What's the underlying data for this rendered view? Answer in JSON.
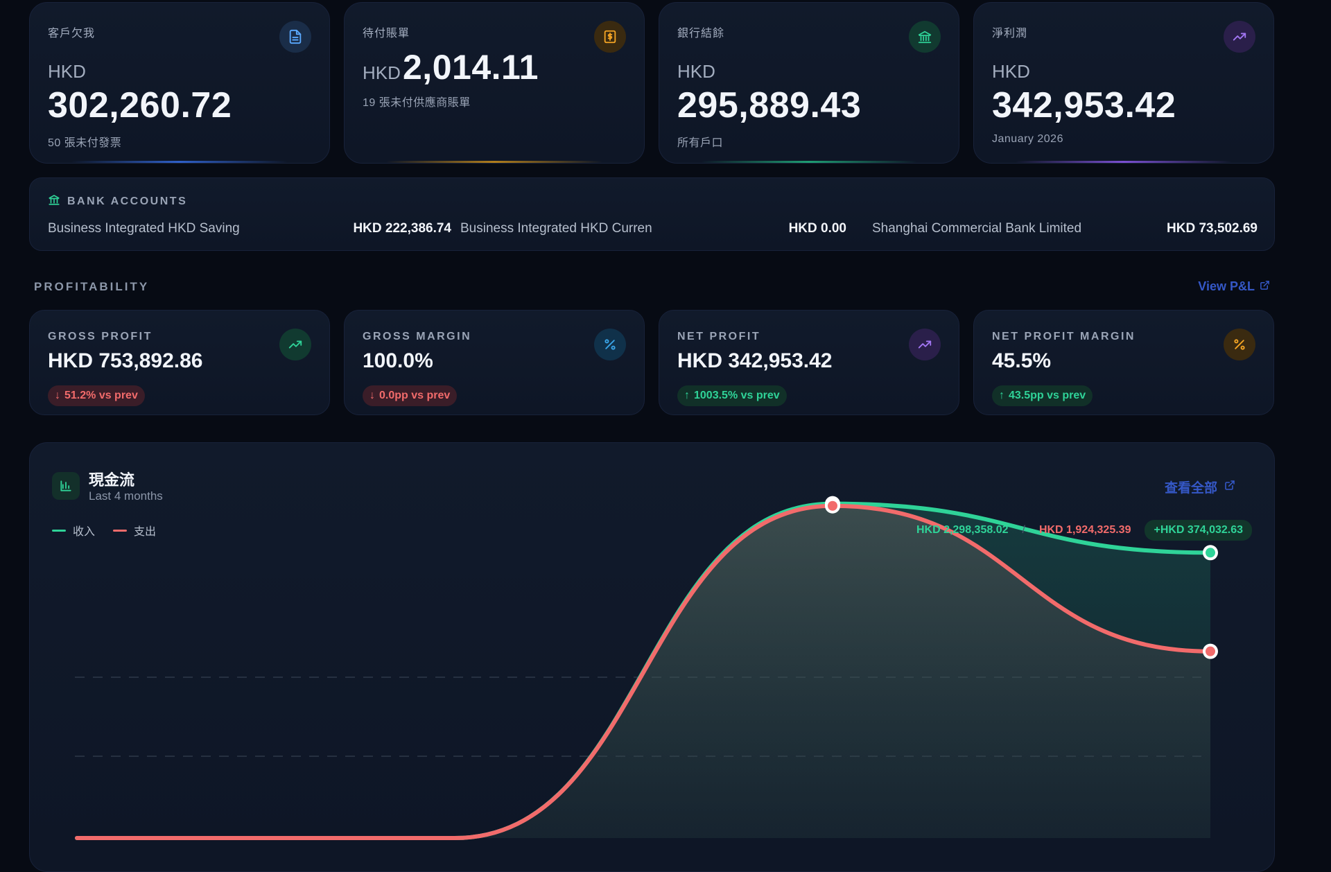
{
  "stats": [
    {
      "label": "客戶欠我",
      "currency": "HKD",
      "value": "302,260.72",
      "sub": "50 張未付發票",
      "icon": "document-icon",
      "color": "#5aa9ff"
    },
    {
      "label": "待付賬單",
      "currency": "HKD",
      "value": "2,014.11",
      "sub": "19 張未付供應商賬單",
      "icon": "dollar-bill-icon",
      "color": "#f5a524"
    },
    {
      "label": "銀行結餘",
      "currency": "HKD",
      "value": "295,889.43",
      "sub": "所有戶口",
      "icon": "bank-icon",
      "color": "#2fd398"
    },
    {
      "label": "淨利潤",
      "currency": "HKD",
      "value": "342,953.42",
      "sub": "January 2026",
      "icon": "trend-up-icon",
      "color": "#a377f5"
    }
  ],
  "bank": {
    "heading": "BANK ACCOUNTS",
    "accounts": [
      {
        "name": "Business Integrated HKD Saving",
        "amount": "HKD 222,386.74"
      },
      {
        "name": "Business Integrated HKD Curren",
        "amount": "HKD 0.00"
      },
      {
        "name": "Shanghai Commercial Bank Limited",
        "amount": "HKD 73,502.69"
      }
    ]
  },
  "profitability": {
    "title": "PROFITABILITY",
    "link": "View P&L",
    "cards": [
      {
        "label": "GROSS PROFIT",
        "value": "HKD 753,892.86",
        "badge": "51.2% vs prev",
        "direction": "down",
        "icon": "trend-up-icon",
        "color": "#2fd398"
      },
      {
        "label": "GROSS MARGIN",
        "value": "100.0%",
        "badge": "0.0pp vs prev",
        "direction": "down",
        "icon": "percent-icon",
        "color": "#3aa5e8"
      },
      {
        "label": "NET PROFIT",
        "value": "HKD 342,953.42",
        "badge": "1003.5% vs prev",
        "direction": "up",
        "icon": "trend-up-icon",
        "color": "#a377f5"
      },
      {
        "label": "NET PROFIT MARGIN",
        "value": "45.5%",
        "badge": "43.5pp vs prev",
        "direction": "up",
        "icon": "percent-icon",
        "color": "#f5a524"
      }
    ]
  },
  "cashflow": {
    "title": "現金流",
    "subtitle": "Last 4 months",
    "link": "查看全部",
    "legend_income": "收入",
    "legend_expense": "支出",
    "total_income": "HKD 2,298,358.02",
    "separator": "/",
    "total_expense": "HKD 1,924,325.39",
    "net": "+HKD 374,032.63"
  },
  "colors": {
    "income": "#2fd398",
    "expense": "#f26b6b",
    "link": "#3558c7"
  },
  "chart_data": {
    "type": "area",
    "x": [
      1,
      2,
      3,
      4
    ],
    "series": [
      {
        "name": "收入",
        "values": [
          0,
          0,
          1240000,
          1058358
        ]
      },
      {
        "name": "支出",
        "values": [
          0,
          0,
          1232000,
          692325
        ]
      }
    ],
    "grid": true,
    "legend": "top-left"
  }
}
